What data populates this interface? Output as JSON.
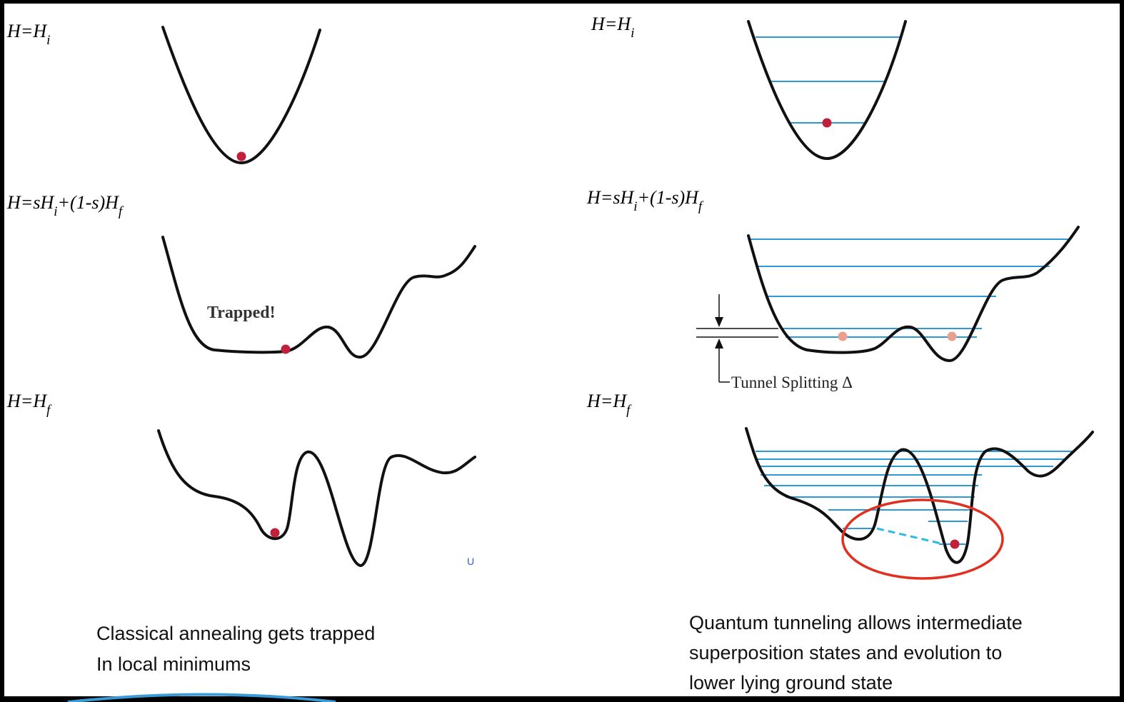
{
  "left": {
    "labels": [
      [
        "H=H",
        "i"
      ],
      [
        "H=sH",
        "i",
        "+(1-s)H",
        "f"
      ],
      [
        "H=H",
        "f"
      ]
    ],
    "annotation": "Trapped!",
    "mark": "U",
    "caption": [
      "Classical annealing gets trapped",
      "In local minimums"
    ]
  },
  "right": {
    "labels": [
      [
        "H=H",
        "i"
      ],
      [
        "H=sH",
        "i",
        "+(1-s)H",
        "f"
      ],
      [
        "H=H",
        "f"
      ]
    ],
    "annotation": "Tunnel Splitting Δ",
    "caption": [
      "Quantum tunneling allows intermediate",
      "superposition states and evolution to",
      "lower lying ground state"
    ]
  }
}
